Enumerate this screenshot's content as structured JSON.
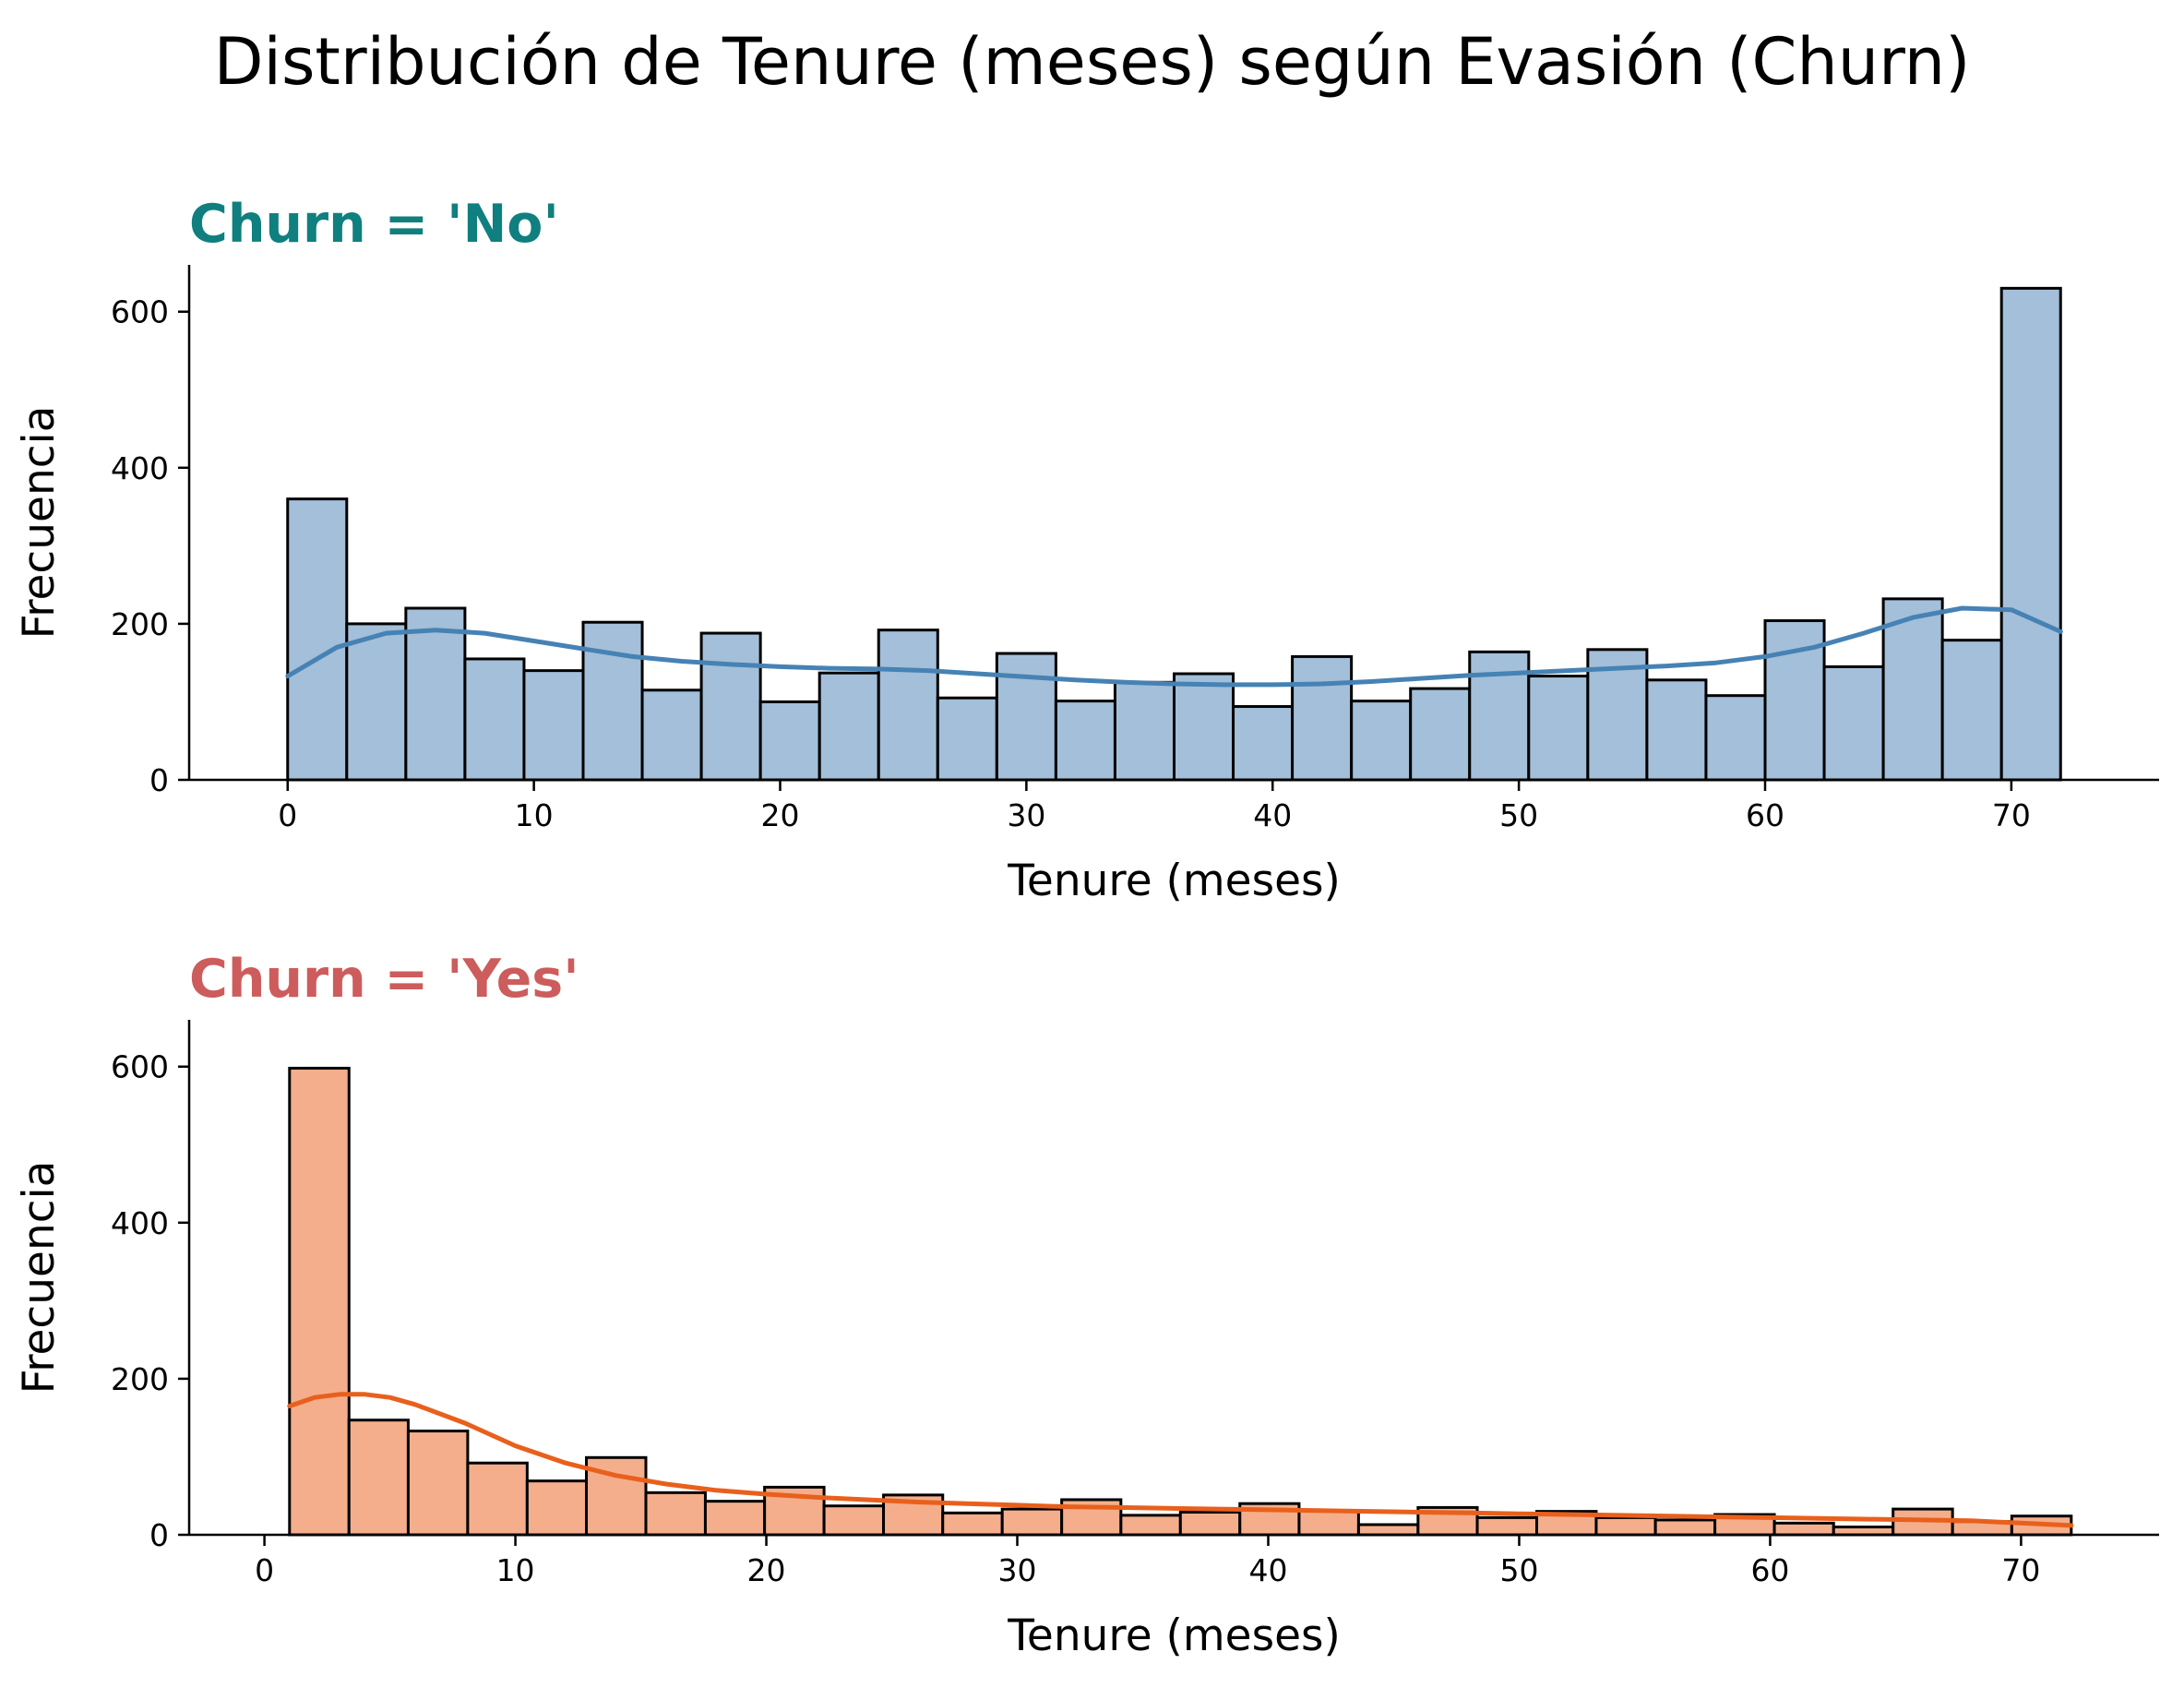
{
  "title": "Distribución de Tenure (meses) según Evasión (Churn)",
  "chart_data": [
    {
      "type": "bar",
      "title": "Churn = 'No'",
      "title_color": "#0F7F7F",
      "xlabel": "Tenure (meses)",
      "ylabel": "Frecuencia",
      "xlim": [
        -4,
        76
      ],
      "ylim": [
        0,
        660
      ],
      "xticks": [
        0,
        10,
        20,
        30,
        40,
        50,
        60,
        70
      ],
      "yticks": [
        0,
        200,
        400,
        600
      ],
      "bar_color": "#A3BFD9",
      "kde_color": "#4682B4",
      "bins": [
        {
          "x0": 0.0,
          "x1": 2.4,
          "value": 360
        },
        {
          "x0": 2.4,
          "x1": 4.8,
          "value": 200
        },
        {
          "x0": 4.8,
          "x1": 7.2,
          "value": 220
        },
        {
          "x0": 7.2,
          "x1": 9.6,
          "value": 155
        },
        {
          "x0": 9.6,
          "x1": 12.0,
          "value": 140
        },
        {
          "x0": 12.0,
          "x1": 14.4,
          "value": 202
        },
        {
          "x0": 14.4,
          "x1": 16.8,
          "value": 115
        },
        {
          "x0": 16.8,
          "x1": 19.2,
          "value": 188
        },
        {
          "x0": 19.2,
          "x1": 21.6,
          "value": 100
        },
        {
          "x0": 21.6,
          "x1": 24.0,
          "value": 137
        },
        {
          "x0": 24.0,
          "x1": 26.4,
          "value": 192
        },
        {
          "x0": 26.4,
          "x1": 28.8,
          "value": 105
        },
        {
          "x0": 28.8,
          "x1": 31.2,
          "value": 162
        },
        {
          "x0": 31.2,
          "x1": 33.6,
          "value": 101
        },
        {
          "x0": 33.6,
          "x1": 36.0,
          "value": 125
        },
        {
          "x0": 36.0,
          "x1": 38.4,
          "value": 136
        },
        {
          "x0": 38.4,
          "x1": 40.8,
          "value": 94
        },
        {
          "x0": 40.8,
          "x1": 43.2,
          "value": 158
        },
        {
          "x0": 43.2,
          "x1": 45.6,
          "value": 101
        },
        {
          "x0": 45.6,
          "x1": 48.0,
          "value": 117
        },
        {
          "x0": 48.0,
          "x1": 50.4,
          "value": 164
        },
        {
          "x0": 50.4,
          "x1": 52.8,
          "value": 133
        },
        {
          "x0": 52.8,
          "x1": 55.2,
          "value": 167
        },
        {
          "x0": 55.2,
          "x1": 57.6,
          "value": 128
        },
        {
          "x0": 57.6,
          "x1": 60.0,
          "value": 108
        },
        {
          "x0": 60.0,
          "x1": 62.4,
          "value": 204
        },
        {
          "x0": 62.4,
          "x1": 64.8,
          "value": 145
        },
        {
          "x0": 64.8,
          "x1": 67.2,
          "value": 232
        },
        {
          "x0": 67.2,
          "x1": 69.6,
          "value": 179
        },
        {
          "x0": 69.6,
          "x1": 72.0,
          "value": 630
        }
      ],
      "kde": {
        "x": [
          0,
          2,
          4,
          6,
          8,
          10,
          12,
          14,
          16,
          18,
          20,
          22,
          24,
          26,
          28,
          30,
          32,
          34,
          36,
          38,
          40,
          42,
          44,
          46,
          48,
          50,
          52,
          54,
          56,
          58,
          60,
          62,
          64,
          66,
          68,
          70,
          72
        ],
        "y": [
          133,
          170,
          188,
          192,
          188,
          178,
          168,
          158,
          152,
          148,
          145,
          143,
          142,
          140,
          136,
          132,
          128,
          125,
          123,
          122,
          122,
          123,
          126,
          130,
          134,
          137,
          140,
          143,
          146,
          150,
          158,
          170,
          188,
          208,
          220,
          218,
          190
        ]
      }
    },
    {
      "type": "bar",
      "title": "Churn = 'Yes'",
      "title_color": "#CD5C5C",
      "xlabel": "Tenure (meses)",
      "ylabel": "Frecuencia",
      "xlim": [
        -3,
        75.5
      ],
      "ylim": [
        0,
        660
      ],
      "xticks": [
        0,
        10,
        20,
        30,
        40,
        50,
        60,
        70
      ],
      "yticks": [
        0,
        200,
        400,
        600
      ],
      "bar_color": "#F4AE8C",
      "kde_color": "#E8601C",
      "bins": [
        {
          "x0": 1.0,
          "x1": 3.37,
          "value": 598
        },
        {
          "x0": 3.37,
          "x1": 5.73,
          "value": 147
        },
        {
          "x0": 5.73,
          "x1": 8.1,
          "value": 133
        },
        {
          "x0": 8.1,
          "x1": 10.47,
          "value": 92
        },
        {
          "x0": 10.47,
          "x1": 12.83,
          "value": 69
        },
        {
          "x0": 12.83,
          "x1": 15.2,
          "value": 99
        },
        {
          "x0": 15.2,
          "x1": 17.57,
          "value": 54
        },
        {
          "x0": 17.57,
          "x1": 19.93,
          "value": 43
        },
        {
          "x0": 19.93,
          "x1": 22.3,
          "value": 61
        },
        {
          "x0": 22.3,
          "x1": 24.67,
          "value": 37
        },
        {
          "x0": 24.67,
          "x1": 27.03,
          "value": 51
        },
        {
          "x0": 27.03,
          "x1": 29.4,
          "value": 28
        },
        {
          "x0": 29.4,
          "x1": 31.77,
          "value": 33
        },
        {
          "x0": 31.77,
          "x1": 34.13,
          "value": 45
        },
        {
          "x0": 34.13,
          "x1": 36.5,
          "value": 25
        },
        {
          "x0": 36.5,
          "x1": 38.87,
          "value": 29
        },
        {
          "x0": 38.87,
          "x1": 41.23,
          "value": 40
        },
        {
          "x0": 41.23,
          "x1": 43.6,
          "value": 31
        },
        {
          "x0": 43.6,
          "x1": 45.97,
          "value": 13
        },
        {
          "x0": 45.97,
          "x1": 48.33,
          "value": 35
        },
        {
          "x0": 48.33,
          "x1": 50.7,
          "value": 22
        },
        {
          "x0": 50.7,
          "x1": 53.07,
          "value": 30
        },
        {
          "x0": 53.07,
          "x1": 55.43,
          "value": 22
        },
        {
          "x0": 55.43,
          "x1": 57.8,
          "value": 19
        },
        {
          "x0": 57.8,
          "x1": 60.17,
          "value": 26
        },
        {
          "x0": 60.17,
          "x1": 62.53,
          "value": 15
        },
        {
          "x0": 62.53,
          "x1": 64.9,
          "value": 10
        },
        {
          "x0": 64.9,
          "x1": 67.27,
          "value": 33
        },
        {
          "x0": 67.27,
          "x1": 69.63,
          "value": 17
        },
        {
          "x0": 69.63,
          "x1": 72.0,
          "value": 24
        }
      ],
      "kde": {
        "x": [
          1,
          2,
          3,
          4,
          5,
          6,
          8,
          10,
          12,
          14,
          16,
          18,
          20,
          22,
          24,
          26,
          28,
          30,
          32,
          34,
          36,
          38,
          40,
          42,
          44,
          46,
          48,
          50,
          52,
          54,
          56,
          58,
          60,
          62,
          64,
          66,
          68,
          70,
          72
        ],
        "y": [
          165,
          176,
          180,
          180,
          176,
          167,
          143,
          114,
          92,
          76,
          65,
          57,
          52,
          48,
          45,
          42,
          40,
          38,
          36,
          35,
          34,
          33,
          32,
          31,
          30,
          29,
          28,
          27,
          26,
          25,
          24,
          23,
          22,
          21,
          20,
          19,
          18,
          15,
          12
        ]
      }
    }
  ]
}
